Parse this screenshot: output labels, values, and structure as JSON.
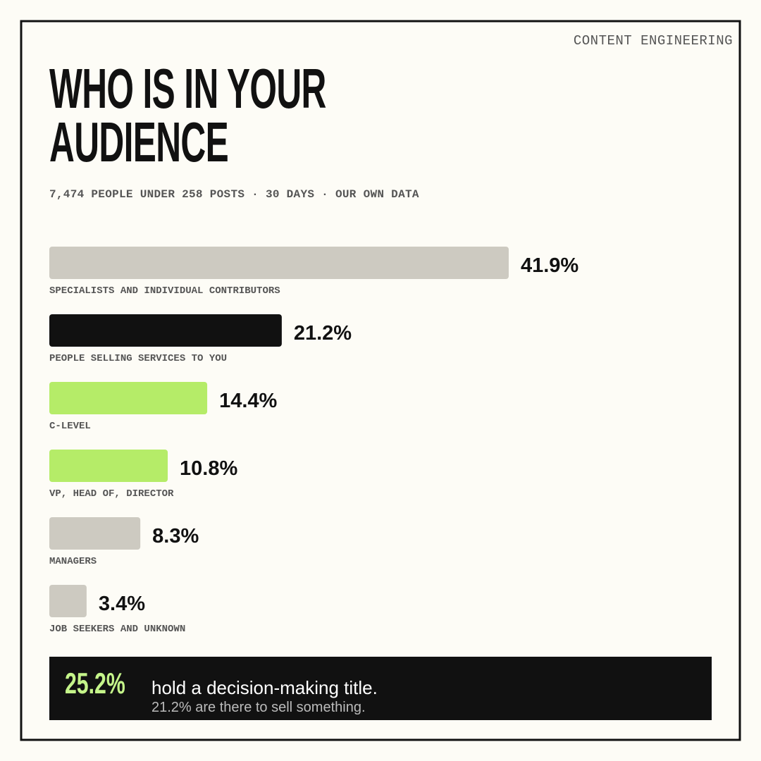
{
  "chart_data": {
    "type": "bar",
    "orientation": "horizontal",
    "brand": "CONTENT ENGINEERING",
    "title": "WHO IS IN YOUR AUDIENCE",
    "subtitle": "7,474 PEOPLE UNDER 258 POSTS · 30 DAYS · OUR OWN DATA",
    "categories": [
      "SPECIALISTS AND INDIVIDUAL CONTRIBUTORS",
      "PEOPLE SELLING SERVICES TO YOU",
      "C-LEVEL",
      "VP, HEAD OF, DIRECTOR",
      "MANAGERS",
      "JOB SEEKERS AND UNKNOWN"
    ],
    "values": [
      41.9,
      21.2,
      14.4,
      10.8,
      8.3,
      3.4
    ],
    "value_labels": [
      "41.9%",
      "21.2%",
      "14.4%",
      "10.8%",
      "8.3%",
      "3.4%"
    ],
    "colors": [
      "#cdcac1",
      "#111111",
      "#b5ec68",
      "#b5ec68",
      "#cdcac1",
      "#cdcac1"
    ],
    "callout": {
      "highlight": "25.2%",
      "text": "hold a decision-making title.",
      "subtext": "21.2% are there to sell something."
    }
  }
}
